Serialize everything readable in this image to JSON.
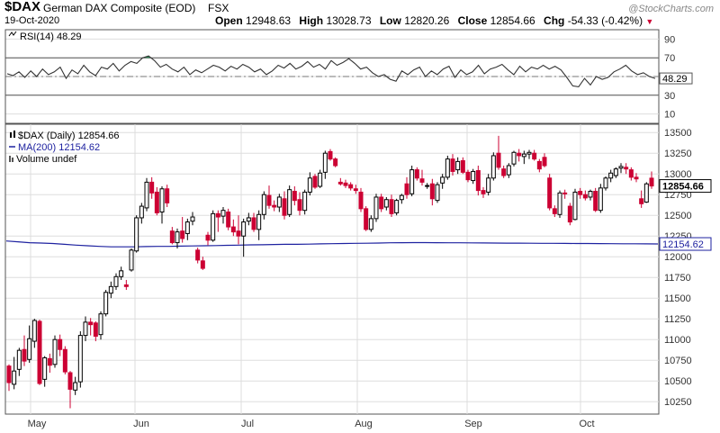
{
  "header": {
    "symbol": "$DAX",
    "name": "German DAX Composite (EOD)",
    "exchange": "FSX",
    "date": "19-Oct-2020",
    "open_label": "Open",
    "open": "12948.63",
    "high_label": "High",
    "high": "13028.73",
    "low_label": "Low",
    "low": "12820.26",
    "close_label": "Close",
    "close": "12854.66",
    "chg_label": "Chg",
    "chg": "-54.33 (-0.42%)",
    "watermark": "@StockCharts.com"
  },
  "colors": {
    "up": "#000000",
    "down": "#cc0033",
    "ma": "#1e22a0",
    "rsi_fill": "#2e8b57",
    "grid": "#dddddd"
  },
  "chart_data": [
    {
      "type": "line",
      "legend": "RSI(14) 48.29",
      "current_label": "48.29",
      "yticks": [
        10,
        30,
        50,
        70,
        90
      ],
      "ylim": [
        0,
        100
      ],
      "reference_lines": [
        30,
        50,
        70
      ],
      "series": [
        {
          "values": [
            53,
            51,
            55,
            49,
            56,
            50,
            58,
            52,
            55,
            60,
            48,
            57,
            53,
            62,
            55,
            51,
            60,
            58,
            64,
            56,
            62,
            66,
            64,
            70,
            72,
            67,
            60,
            63,
            58,
            55,
            60,
            52,
            57,
            54,
            58,
            62,
            60,
            56,
            61,
            58,
            63,
            60,
            55,
            58,
            52,
            56,
            62,
            59,
            64,
            58,
            61,
            66,
            60,
            63,
            58,
            67,
            62,
            65,
            69,
            64,
            58,
            60,
            54,
            50,
            52,
            47,
            45,
            56,
            52,
            57,
            60,
            50,
            56,
            52,
            58,
            61,
            49,
            57,
            52,
            55,
            62,
            53,
            58,
            60,
            63,
            57,
            52,
            61,
            55,
            60,
            58,
            62,
            58,
            61,
            57,
            49,
            40,
            39,
            48,
            41,
            50,
            47,
            49,
            55,
            58,
            62,
            56,
            52,
            54,
            50,
            48
          ]
        }
      ]
    },
    {
      "type": "candlestick",
      "title": "$DAX (Daily) 12854.66",
      "legend": [
        {
          "label": "$DAX (Daily) 12854.66"
        },
        {
          "label": "MA(200) 12154.62"
        },
        {
          "label": "Volume undef"
        }
      ],
      "x_labels": [
        "May",
        "Jun",
        "Jul",
        "Aug",
        "Sep",
        "Oct"
      ],
      "yticks": [
        10250,
        10500,
        10750,
        11000,
        11250,
        11500,
        11750,
        12000,
        12250,
        12500,
        12750,
        13000,
        13250,
        13500
      ],
      "ylim": [
        10100,
        13600
      ],
      "last_close_label": "12854.66",
      "ma_label": "12154.62",
      "ohlc": [
        [
          10680,
          10700,
          10380,
          10480
        ],
        [
          10460,
          10790,
          10400,
          10620
        ],
        [
          10640,
          10900,
          10560,
          10870
        ],
        [
          10880,
          11050,
          10680,
          10740
        ],
        [
          10760,
          11170,
          10720,
          11010
        ],
        [
          10980,
          11250,
          10900,
          11230
        ],
        [
          11220,
          11240,
          10450,
          10470
        ],
        [
          10520,
          10800,
          10430,
          10780
        ],
        [
          10770,
          10830,
          10600,
          10690
        ],
        [
          10700,
          11050,
          10660,
          11000
        ],
        [
          11000,
          11060,
          10800,
          10880
        ],
        [
          10880,
          10920,
          10580,
          10610
        ],
        [
          10600,
          10620,
          10170,
          10400
        ],
        [
          10390,
          10550,
          10330,
          10480
        ],
        [
          10490,
          11100,
          10420,
          11050
        ],
        [
          11050,
          11280,
          10980,
          11210
        ],
        [
          11210,
          11260,
          11050,
          11180
        ],
        [
          11200,
          11220,
          10980,
          11040
        ],
        [
          11060,
          11340,
          11000,
          11310
        ],
        [
          11310,
          11600,
          11280,
          11570
        ],
        [
          11560,
          11700,
          11500,
          11640
        ],
        [
          11640,
          11800,
          11600,
          11760
        ],
        [
          11760,
          11880,
          11720,
          11830
        ],
        [
          11660,
          11720,
          11600,
          11640
        ],
        [
          11840,
          12100,
          11820,
          12080
        ],
        [
          12070,
          12500,
          12050,
          12470
        ],
        [
          12470,
          12650,
          12400,
          12610
        ],
        [
          12590,
          12950,
          12550,
          12900
        ],
        [
          12900,
          12960,
          12700,
          12770
        ],
        [
          12780,
          12840,
          12500,
          12530
        ],
        [
          12540,
          12850,
          12400,
          12820
        ],
        [
          12820,
          12870,
          12600,
          12650
        ],
        [
          12310,
          12360,
          12150,
          12170
        ],
        [
          12170,
          12340,
          12100,
          12300
        ],
        [
          12310,
          12480,
          12170,
          12220
        ],
        [
          12280,
          12460,
          12200,
          12420
        ],
        [
          12430,
          12540,
          12380,
          12480
        ],
        [
          12080,
          12110,
          11920,
          11960
        ],
        [
          11950,
          12000,
          11840,
          11860
        ],
        [
          12260,
          12300,
          12140,
          12200
        ],
        [
          12200,
          12560,
          12180,
          12520
        ],
        [
          12520,
          12560,
          12300,
          12480
        ],
        [
          12490,
          12600,
          12400,
          12560
        ],
        [
          12540,
          12580,
          12320,
          12360
        ],
        [
          12360,
          12450,
          12250,
          12300
        ],
        [
          12310,
          12500,
          12150,
          12250
        ],
        [
          12250,
          12460,
          12000,
          12420
        ],
        [
          12430,
          12530,
          12380,
          12470
        ],
        [
          12470,
          12530,
          12300,
          12330
        ],
        [
          12330,
          12560,
          12200,
          12510
        ],
        [
          12510,
          12790,
          12450,
          12750
        ],
        [
          12740,
          12860,
          12580,
          12620
        ],
        [
          12620,
          12680,
          12550,
          12600
        ],
        [
          12600,
          12760,
          12540,
          12720
        ],
        [
          12700,
          12790,
          12450,
          12500
        ],
        [
          12510,
          12860,
          12480,
          12810
        ],
        [
          12790,
          12850,
          12620,
          12680
        ],
        [
          12690,
          12780,
          12500,
          12560
        ],
        [
          12560,
          12810,
          12510,
          12780
        ],
        [
          12780,
          13020,
          12740,
          12950
        ],
        [
          12970,
          13000,
          12820,
          12840
        ],
        [
          12850,
          13050,
          12830,
          13010
        ],
        [
          13020,
          13280,
          12940,
          13250
        ],
        [
          13270,
          13300,
          13160,
          13180
        ],
        [
          13180,
          13200,
          13080,
          13100
        ],
        [
          12900,
          12950,
          12860,
          12880
        ],
        [
          12890,
          12930,
          12830,
          12860
        ],
        [
          12870,
          12900,
          12800,
          12830
        ],
        [
          12820,
          12870,
          12760,
          12800
        ],
        [
          12780,
          12830,
          12540,
          12580
        ],
        [
          12580,
          12610,
          12310,
          12330
        ],
        [
          12330,
          12500,
          12300,
          12460
        ],
        [
          12460,
          12760,
          12420,
          12720
        ],
        [
          12720,
          12760,
          12540,
          12580
        ],
        [
          12600,
          12720,
          12560,
          12690
        ],
        [
          12690,
          12750,
          12480,
          12520
        ],
        [
          12530,
          12700,
          12500,
          12680
        ],
        [
          12690,
          12760,
          12640,
          12740
        ],
        [
          12880,
          12960,
          12700,
          12750
        ],
        [
          12760,
          13100,
          12730,
          13050
        ],
        [
          13050,
          13080,
          12920,
          12950
        ],
        [
          12940,
          13050,
          12860,
          12900
        ],
        [
          12850,
          12890,
          12820,
          12860
        ],
        [
          12880,
          12940,
          12620,
          12700
        ],
        [
          12680,
          12900,
          12650,
          12870
        ],
        [
          12890,
          13000,
          12820,
          12960
        ],
        [
          12960,
          13220,
          12930,
          13180
        ],
        [
          13180,
          13240,
          12980,
          13030
        ],
        [
          13050,
          13200,
          13000,
          13150
        ],
        [
          13160,
          13200,
          13000,
          13020
        ],
        [
          13020,
          13050,
          12900,
          12930
        ],
        [
          12920,
          13060,
          12880,
          13030
        ],
        [
          13040,
          13100,
          12740,
          12800
        ],
        [
          12800,
          12840,
          12710,
          12760
        ],
        [
          12780,
          13000,
          12740,
          12950
        ],
        [
          12950,
          13260,
          12920,
          13220
        ],
        [
          13250,
          13460,
          13050,
          13080
        ],
        [
          13060,
          13100,
          12950,
          12980
        ],
        [
          12990,
          13130,
          12950,
          13100
        ],
        [
          13120,
          13280,
          13090,
          13260
        ],
        [
          13250,
          13300,
          13150,
          13220
        ],
        [
          13210,
          13280,
          13120,
          13240
        ],
        [
          13240,
          13290,
          13180,
          13260
        ],
        [
          13250,
          13290,
          13160,
          13180
        ],
        [
          13150,
          13180,
          13020,
          13060
        ],
        [
          13200,
          13250,
          13080,
          13100
        ],
        [
          12950,
          13000,
          12560,
          12590
        ],
        [
          12580,
          12620,
          12480,
          12520
        ],
        [
          12510,
          12800,
          12470,
          12770
        ],
        [
          12770,
          12810,
          12700,
          12760
        ],
        [
          12610,
          12650,
          12380,
          12420
        ],
        [
          12450,
          12820,
          12440,
          12780
        ],
        [
          12790,
          12830,
          12700,
          12750
        ],
        [
          12750,
          12800,
          12680,
          12710
        ],
        [
          12720,
          12810,
          12680,
          12790
        ],
        [
          12790,
          12830,
          12540,
          12560
        ],
        [
          12560,
          12880,
          12530,
          12830
        ],
        [
          12830,
          12970,
          12800,
          12950
        ],
        [
          12950,
          13050,
          12900,
          13010
        ],
        [
          12980,
          13080,
          12950,
          13060
        ],
        [
          13070,
          13130,
          13010,
          13090
        ],
        [
          13080,
          13130,
          13000,
          13060
        ],
        [
          13050,
          13080,
          12920,
          12960
        ],
        [
          12960,
          13010,
          12900,
          12940
        ],
        [
          12700,
          12800,
          12590,
          12640
        ],
        [
          12660,
          12900,
          12650,
          12880
        ],
        [
          12948.63,
          13028.73,
          12820.26,
          12854.66
        ]
      ],
      "ma200": [
        12190,
        12180,
        12170,
        12165,
        12160,
        12150,
        12140,
        12133,
        12125,
        12120,
        12120,
        12120,
        12123,
        12125,
        12125,
        12128,
        12130,
        12133,
        12135,
        12138,
        12140,
        12143,
        12145,
        12148,
        12150,
        12150,
        12152,
        12155,
        12158,
        12160,
        12162,
        12163,
        12165,
        12168,
        12170,
        12171,
        12171,
        12170,
        12169,
        12168,
        12167,
        12166,
        12165,
        12164,
        12164,
        12163,
        12162,
        12162,
        12161,
        12160,
        12160,
        12159,
        12158,
        12157,
        12156,
        12155,
        12154
      ]
    }
  ]
}
